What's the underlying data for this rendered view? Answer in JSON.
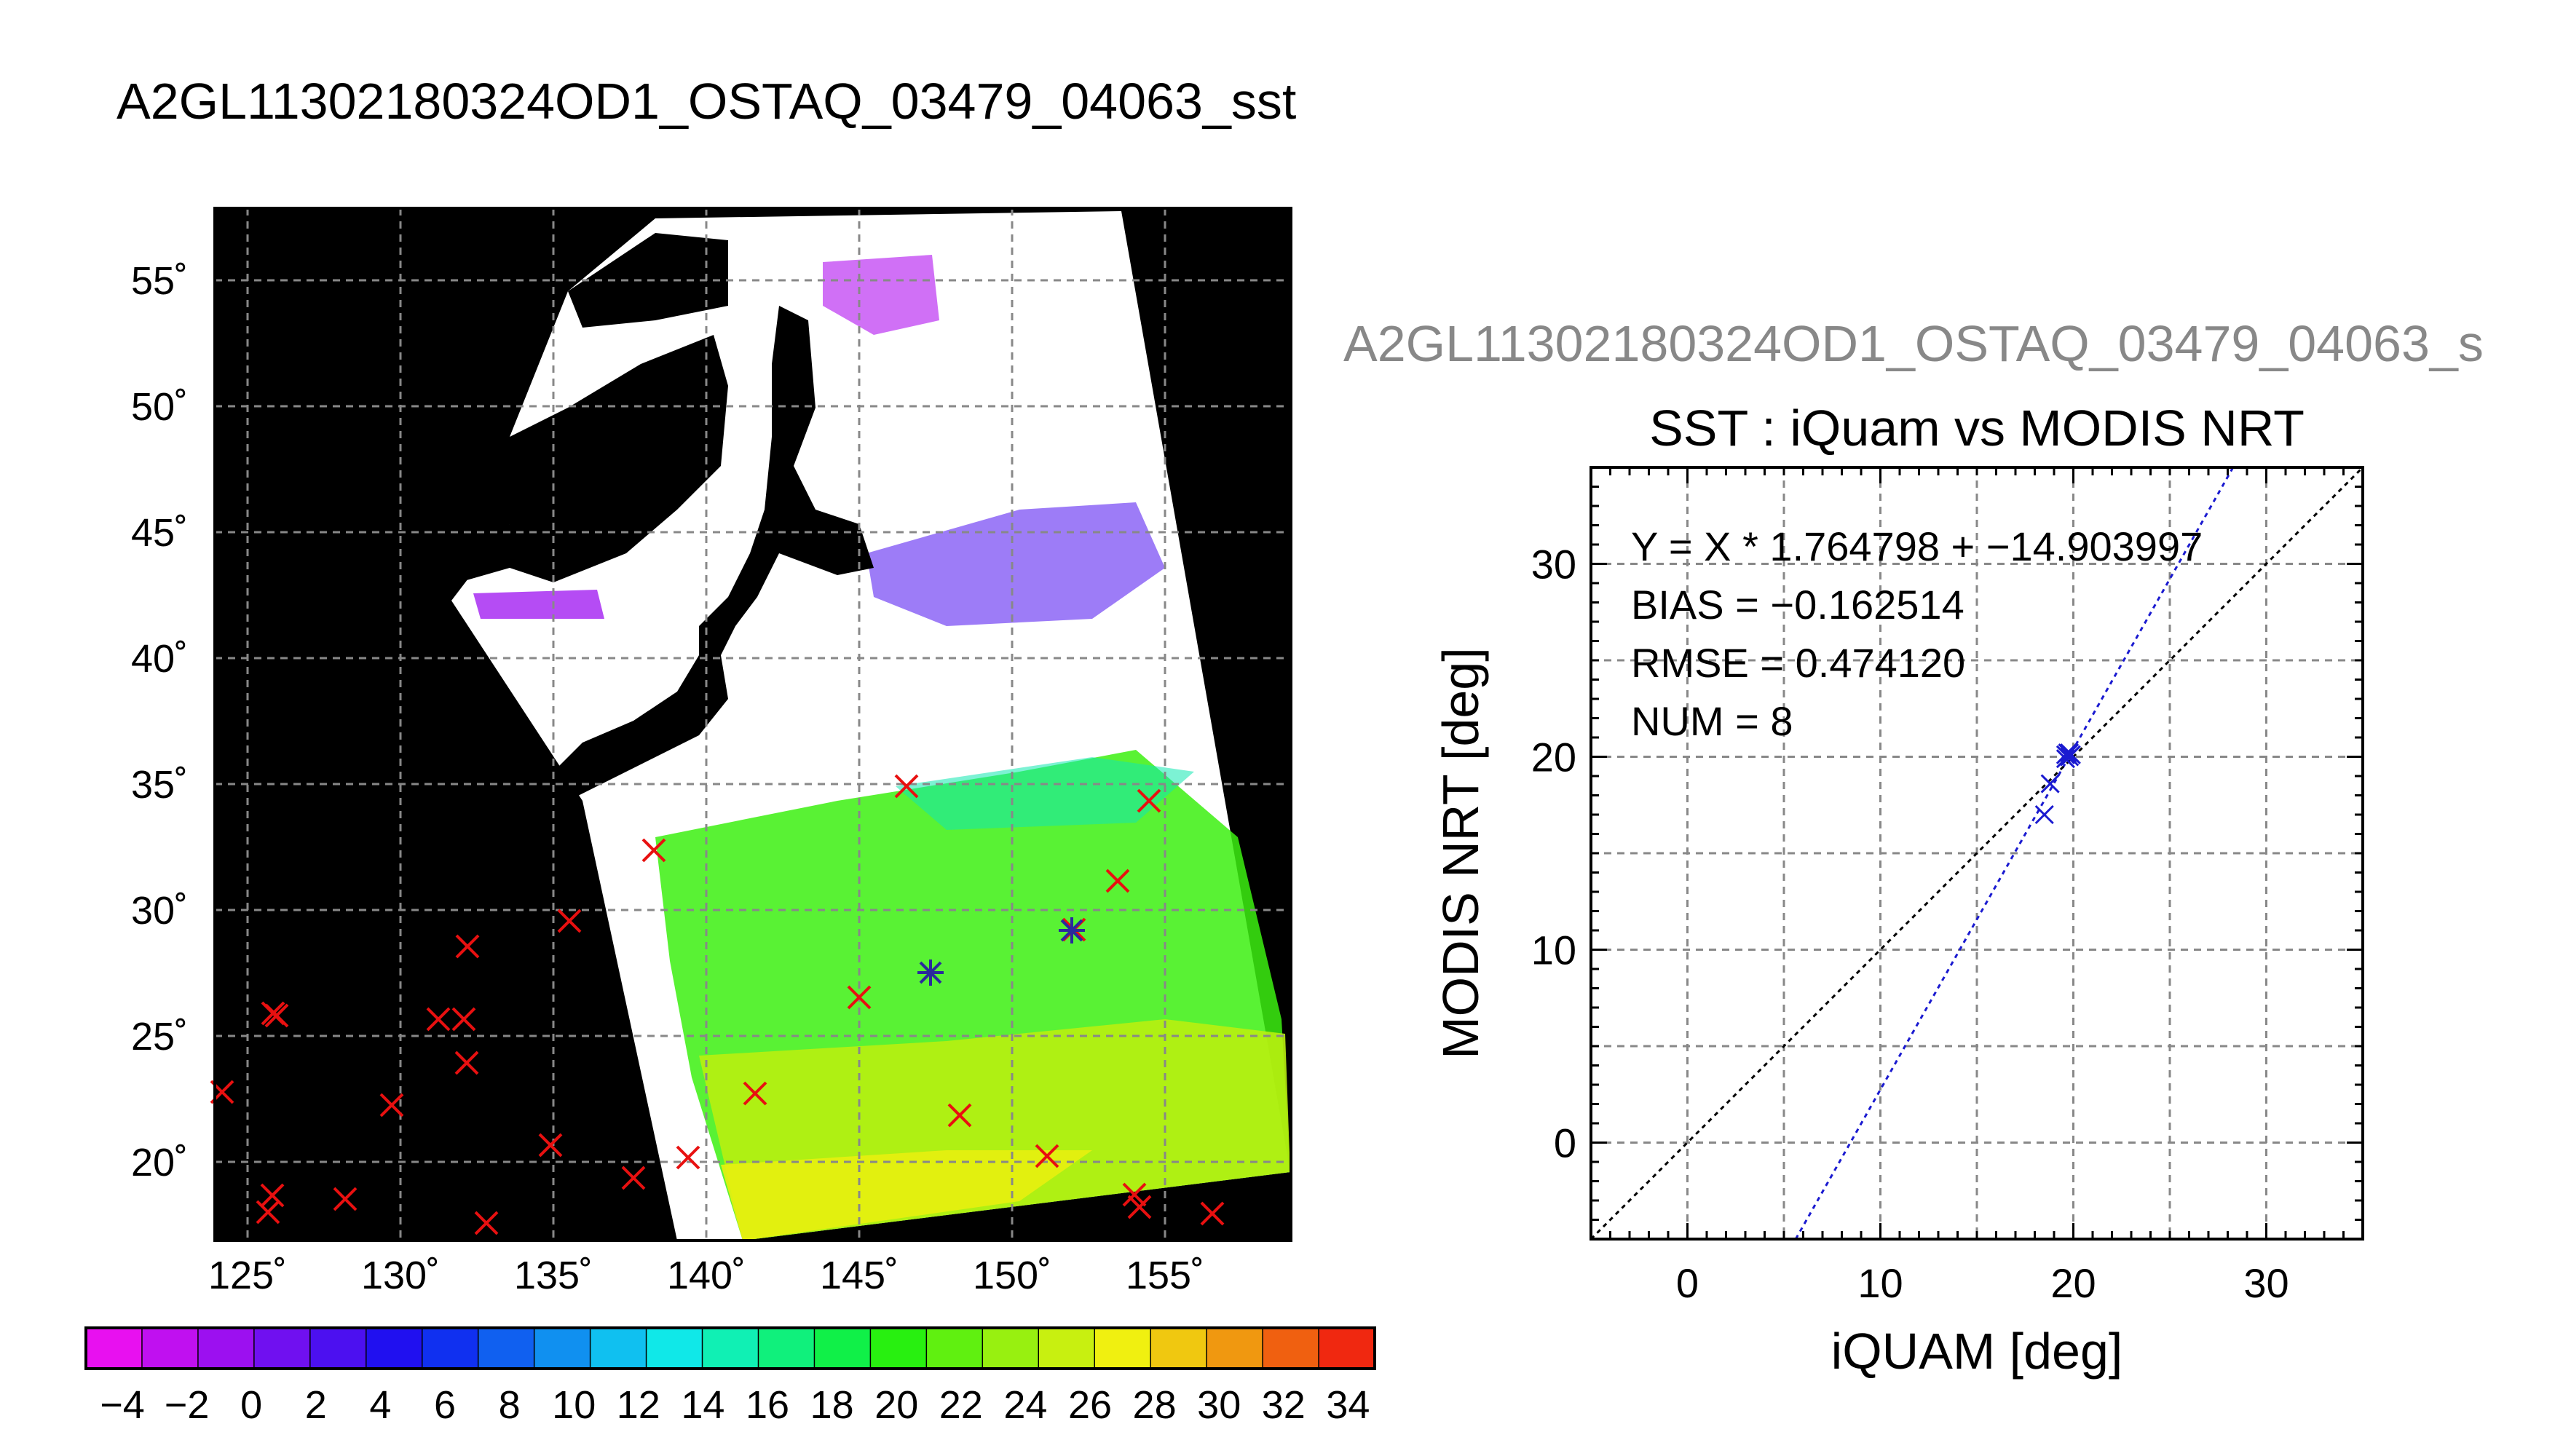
{
  "page_title": "A2GL11302180324OD1_OSTAQ_03479_04063_sst",
  "right_title": "A2GL11302180324OD1_OSTAQ_03479_04063_s",
  "map": {
    "lat_ticks": [
      "55˚",
      "50˚",
      "45˚",
      "40˚",
      "35˚",
      "30˚",
      "25˚",
      "20˚"
    ],
    "lon_ticks": [
      "125˚",
      "130˚",
      "135˚",
      "140˚",
      "145˚",
      "150˚",
      "155˚"
    ],
    "colorbar_ticks": [
      "−4",
      "−2",
      "0",
      "2",
      "4",
      "6",
      "8",
      "10",
      "12",
      "14",
      "16",
      "18",
      "20",
      "22",
      "24",
      "26",
      "28",
      "30",
      "32",
      "34"
    ],
    "colors": {
      "land": "#000000",
      "cloud": "#ffffff",
      "marker": "#e81010",
      "match_marker": "#2a2a9c"
    },
    "colorbar_colors": [
      "#e810f0",
      "#c010f0",
      "#9c10f0",
      "#7010f0",
      "#4c10f0",
      "#2010f0",
      "#1030f0",
      "#1060f0",
      "#1090f0",
      "#10c0f0",
      "#10e8e8",
      "#10f0b4",
      "#10f07c",
      "#10f048",
      "#28f010",
      "#60f010",
      "#98f010",
      "#c8f010",
      "#f0f010",
      "#f0c810",
      "#f09810",
      "#f06010",
      "#f02810"
    ]
  },
  "chart_data": {
    "type": "scatter",
    "title": "SST : iQuam vs MODIS NRT",
    "xlabel": "iQUAM [deg]",
    "ylabel": "MODIS NRT [deg]",
    "xlim": [
      -5,
      35
    ],
    "ylim": [
      -5,
      35
    ],
    "xticks": [
      "0",
      "10",
      "20",
      "30"
    ],
    "yticks": [
      "0",
      "10",
      "20",
      "30"
    ],
    "grid": true,
    "annotations": [
      "Y = X * 1.764798 + −14.903997",
      "BIAS = −0.162514",
      "RMSE = 0.474120",
      "NUM = 8"
    ],
    "series": [
      {
        "type": "scatter",
        "color": "#1a1ad0",
        "points": [
          [
            18.5,
            17.0
          ],
          [
            18.8,
            18.6
          ],
          [
            19.6,
            20.1
          ],
          [
            19.8,
            20.0
          ],
          [
            19.7,
            20.2
          ],
          [
            19.9,
            20.1
          ],
          [
            19.6,
            19.9
          ],
          [
            19.8,
            20.2
          ]
        ]
      }
    ],
    "lines": [
      {
        "slope": 1.764798,
        "intercept": -14.903997,
        "color": "#1a1ad0",
        "style": "dotted"
      },
      {
        "slope": 1,
        "intercept": 0,
        "color": "#000000",
        "style": "dotted"
      }
    ]
  }
}
